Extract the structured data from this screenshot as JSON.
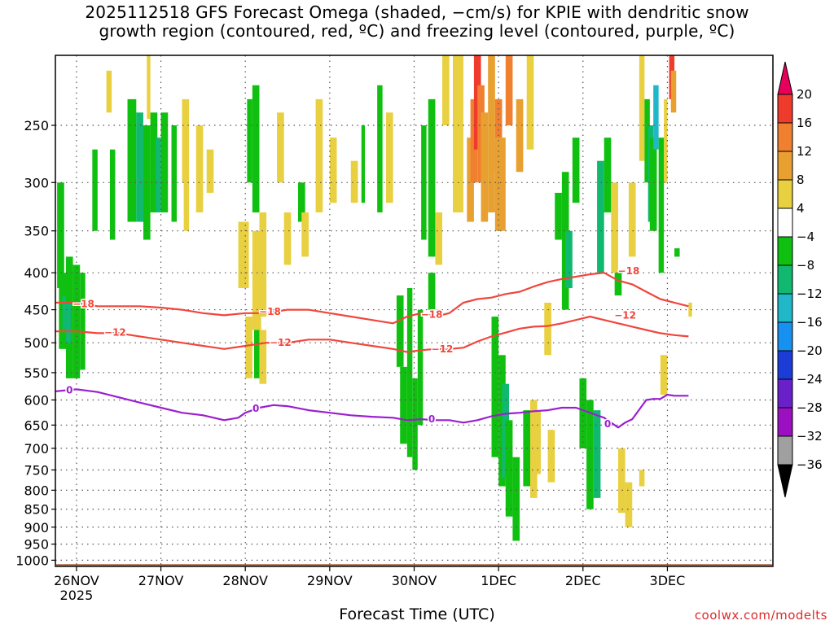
{
  "title": {
    "line1": "2025112518 GFS Forecast Omega (shaded, −cm/s) for KPIE with dendritic snow",
    "line2": "growth region (contoured, red, ºC) and freezing level (contoured, purple, ºC)"
  },
  "credit": "coolwx.com/modelts",
  "colors": {
    "dgz": "#f0463c",
    "freezing": "#9b1fd0",
    "ground": "#a0522d",
    "grid": "#555555"
  },
  "chart_data": {
    "type": "heatmap",
    "xlabel": "Forecast Time (UTC)",
    "ylabel": "",
    "x_unit": "forecast hours from 2025-11-25 18Z",
    "xlim": [
      0,
      204
    ],
    "y_scale": "log",
    "ylim": [
      1020,
      200
    ],
    "grid": true,
    "x_ticks": [
      {
        "x": 6,
        "label": "26NOV",
        "sub": "2025"
      },
      {
        "x": 30,
        "label": "27NOV"
      },
      {
        "x": 54,
        "label": "28NOV"
      },
      {
        "x": 78,
        "label": "29NOV"
      },
      {
        "x": 102,
        "label": "30NOV"
      },
      {
        "x": 126,
        "label": "1DEC"
      },
      {
        "x": 150,
        "label": "2DEC"
      },
      {
        "x": 174,
        "label": "3DEC"
      }
    ],
    "y_ticks": [
      250,
      300,
      350,
      400,
      450,
      500,
      550,
      600,
      650,
      700,
      750,
      800,
      850,
      900,
      950,
      1000
    ],
    "colorbar": {
      "levels": [
        20,
        16,
        12,
        8,
        4,
        -4,
        -8,
        -12,
        -16,
        -20,
        -24,
        -28,
        -32,
        -36
      ],
      "colors": [
        "#e6005c",
        "#ef3b2c",
        "#f08030",
        "#e8a030",
        "#e8d040",
        "#ffffff",
        "#10c010",
        "#10b870",
        "#20b8c8",
        "#1890f0",
        "#1c3cd8",
        "#6a20c8",
        "#9b10c0",
        "#a0a0a0",
        "#000000"
      ]
    },
    "series": [
      {
        "name": "-18",
        "color": "#f0463c",
        "x": [
          -2,
          6,
          12,
          18,
          24,
          30,
          36,
          42,
          48,
          54,
          60,
          66,
          72,
          78,
          84,
          90,
          96,
          100,
          104,
          108,
          112,
          116,
          120,
          124,
          128,
          132,
          136,
          140,
          144,
          148,
          152,
          156,
          160,
          164,
          168,
          172,
          176,
          180
        ],
        "y": [
          440,
          440,
          445,
          445,
          445,
          447,
          450,
          455,
          458,
          455,
          455,
          450,
          450,
          455,
          460,
          465,
          470,
          460,
          455,
          460,
          455,
          440,
          435,
          433,
          428,
          425,
          418,
          412,
          408,
          405,
          402,
          400,
          410,
          415,
          425,
          435,
          440,
          445
        ],
        "labels": [
          {
            "x": 8,
            "y": 442,
            "text": "-18"
          },
          {
            "x": 61,
            "y": 453,
            "text": "-18"
          },
          {
            "x": 107,
            "y": 457,
            "text": "-18"
          },
          {
            "x": 163,
            "y": 398,
            "text": "-18"
          }
        ]
      },
      {
        "name": "-12",
        "color": "#f0463c",
        "x": [
          -2,
          6,
          12,
          18,
          24,
          30,
          36,
          42,
          48,
          54,
          60,
          66,
          72,
          78,
          84,
          90,
          96,
          100,
          104,
          108,
          112,
          116,
          120,
          124,
          128,
          132,
          136,
          140,
          144,
          148,
          152,
          156,
          160,
          164,
          168,
          172,
          176,
          180
        ],
        "y": [
          482,
          482,
          485,
          485,
          490,
          495,
          500,
          505,
          510,
          505,
          500,
          500,
          495,
          495,
          500,
          505,
          510,
          515,
          512,
          510,
          510,
          508,
          498,
          490,
          484,
          478,
          475,
          474,
          470,
          465,
          460,
          465,
          470,
          475,
          480,
          485,
          488,
          490
        ],
        "labels": [
          {
            "x": 17,
            "y": 484,
            "text": "-12"
          },
          {
            "x": 64,
            "y": 500,
            "text": "-12"
          },
          {
            "x": 110,
            "y": 510,
            "text": "-12"
          },
          {
            "x": 162,
            "y": 458,
            "text": "-12"
          }
        ]
      },
      {
        "name": "0",
        "color": "#9b1fd0",
        "x": [
          -2,
          6,
          12,
          18,
          24,
          30,
          36,
          42,
          48,
          52,
          54,
          58,
          62,
          66,
          72,
          78,
          84,
          90,
          96,
          100,
          104,
          108,
          112,
          116,
          120,
          124,
          128,
          132,
          136,
          140,
          144,
          148,
          152,
          156,
          158,
          160,
          162,
          164,
          168,
          170,
          172,
          174,
          176,
          180
        ],
        "y": [
          585,
          580,
          585,
          595,
          605,
          615,
          625,
          630,
          640,
          635,
          625,
          615,
          610,
          612,
          620,
          625,
          630,
          633,
          635,
          640,
          638,
          640,
          640,
          645,
          640,
          632,
          627,
          625,
          622,
          620,
          615,
          615,
          625,
          635,
          645,
          655,
          645,
          638,
          600,
          598,
          598,
          590,
          592,
          592
        ],
        "labels": [
          {
            "x": 4,
            "y": 582,
            "text": "0"
          },
          {
            "x": 57,
            "y": 617,
            "text": "0"
          },
          {
            "x": 107,
            "y": 638,
            "text": "0"
          },
          {
            "x": 157,
            "y": 648,
            "text": "0"
          }
        ]
      }
    ]
  }
}
